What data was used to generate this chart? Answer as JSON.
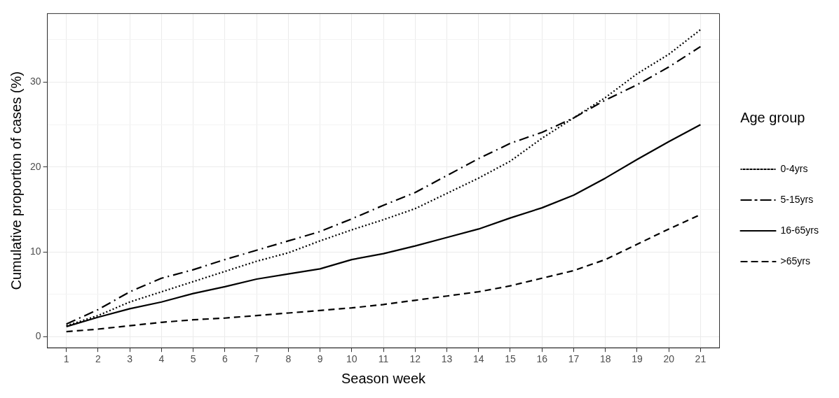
{
  "chart_data": {
    "type": "line",
    "xlabel": "Season week",
    "ylabel": "Cumulative proportion of cases (%)",
    "legend_title": "Age group",
    "legend": "right",
    "grid": true,
    "marker": "none",
    "x": [
      1,
      2,
      3,
      4,
      5,
      6,
      7,
      8,
      9,
      10,
      11,
      12,
      13,
      14,
      15,
      16,
      17,
      18,
      19,
      20,
      21
    ],
    "xlim": [
      0.4,
      21.6
    ],
    "xticks": [
      1,
      2,
      3,
      4,
      5,
      6,
      7,
      8,
      9,
      10,
      11,
      12,
      13,
      14,
      15,
      16,
      17,
      18,
      19,
      20,
      21
    ],
    "ylim": [
      -1.3,
      38.1
    ],
    "yticks": [
      0,
      {
        "value": 5,
        "label": null
      },
      10,
      {
        "value": 15,
        "label": null
      },
      20,
      {
        "value": 25,
        "label": null
      },
      30,
      {
        "value": 35,
        "label": null
      }
    ],
    "series": [
      {
        "name": "0-4yrs",
        "color": "#000000",
        "line_style": "dotted",
        "values": [
          1.3,
          2.5,
          4.1,
          5.3,
          6.5,
          7.7,
          8.9,
          9.9,
          11.3,
          12.6,
          13.8,
          15.1,
          16.9,
          18.7,
          20.7,
          23.4,
          25.8,
          28.2,
          31.0,
          33.3,
          36.2
        ]
      },
      {
        "name": "5-15yrs",
        "color": "#000000",
        "line_style": "dashdot",
        "values": [
          1.5,
          3.2,
          5.3,
          6.9,
          7.9,
          9.1,
          10.2,
          11.3,
          12.4,
          13.9,
          15.5,
          17.0,
          19.0,
          21.0,
          22.8,
          24.1,
          25.8,
          27.9,
          29.7,
          31.8,
          34.2
        ]
      },
      {
        "name": "16-65yrs",
        "color": "#000000",
        "line_style": "solid",
        "values": [
          1.2,
          2.3,
          3.3,
          4.1,
          5.1,
          5.9,
          6.8,
          7.4,
          8.0,
          9.1,
          9.8,
          10.7,
          11.7,
          12.7,
          14.0,
          15.2,
          16.7,
          18.7,
          20.9,
          23.0,
          25.0
        ]
      },
      {
        "name": ">65yrs",
        "color": "#000000",
        "line_style": "dashed",
        "values": [
          0.6,
          0.9,
          1.3,
          1.7,
          2.0,
          2.2,
          2.5,
          2.8,
          3.1,
          3.4,
          3.8,
          4.3,
          4.8,
          5.3,
          6.0,
          6.9,
          7.8,
          9.1,
          10.9,
          12.7,
          14.4
        ]
      }
    ]
  }
}
